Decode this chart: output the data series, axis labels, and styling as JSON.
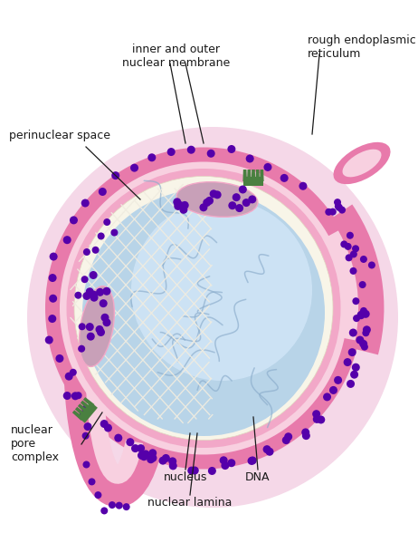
{
  "bg_color": "#ffffff",
  "pink_outer": "#e87aab",
  "pink_mid": "#f2a8c8",
  "pink_light": "#f8d0e0",
  "pink_pale": "#fbe8f0",
  "nucleus_blue": "#b8d4e8",
  "nucleus_blue2": "#cce0f0",
  "nucleus_highlight": "#ddeeff",
  "lamina_cream": "#f8f5e8",
  "net_color": "#f0ece0",
  "dna_line": "#8aaccb",
  "purple_dot": "#5500aa",
  "green_pore": "#4a8040",
  "line_color": "#1a1a1a",
  "text_color": "#1a1a1a",
  "perinuc_fill": "#c8a0b8",
  "labels": {
    "inner_outer_membrane": "inner and outer\nnuclear membrane",
    "rough_er": "rough endoplasmic\nreticulum",
    "perinuclear": "perinuclear space",
    "pore_complex": "nuclear\npore\ncomplex",
    "nucleus": "nucleus",
    "dna": "DNA",
    "nuclear_lamina": "nuclear lamina"
  },
  "fig_width": 4.62,
  "fig_height": 5.99
}
